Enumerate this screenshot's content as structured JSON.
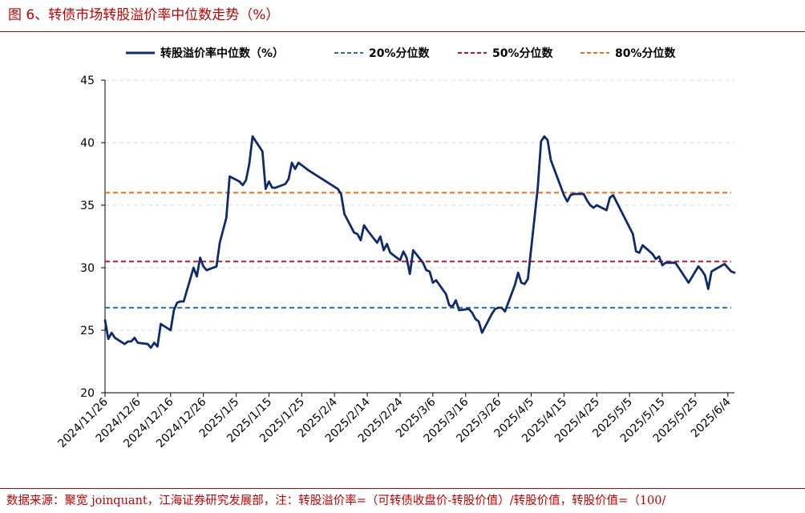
{
  "figure": {
    "title": "图 6、转债市场转股溢价率中位数走势（%）",
    "source": "数据来源：聚宽 joinquant，江海证券研究发展部，注：转股溢价率=（可转债收盘价-转股价值）/转股价值，转股价值=（100/"
  },
  "chart_data": {
    "type": "line",
    "ylim": [
      20,
      45
    ],
    "yticks": [
      20,
      25,
      30,
      35,
      40,
      45
    ],
    "xlim": [
      "2024-11-26",
      "2025-06-06"
    ],
    "xtick_labels": [
      "2024/11/26",
      "2024/12/6",
      "2024/12/16",
      "2024/12/26",
      "2025/1/5",
      "2025/1/15",
      "2025/1/25",
      "2025/2/4",
      "2025/2/14",
      "2025/2/24",
      "2025/3/6",
      "2025/3/16",
      "2025/3/26",
      "2025/4/5",
      "2025/4/15",
      "2025/4/25",
      "2025/5/5",
      "2025/5/15",
      "2025/5/25",
      "2025/6/4"
    ],
    "grid": "horizontal dashed",
    "legend_placement": "top",
    "series": [
      {
        "name": "转股溢价率中位数（%）",
        "style": "solid",
        "color": "#0f2b6b",
        "points": [
          [
            "2024-11-26",
            25.8
          ],
          [
            "2024-11-27",
            24.3
          ],
          [
            "2024-11-28",
            24.8
          ],
          [
            "2024-11-29",
            24.4
          ],
          [
            "2024-12-02",
            23.9
          ],
          [
            "2024-12-03",
            24.1
          ],
          [
            "2024-12-04",
            24.1
          ],
          [
            "2024-12-05",
            24.4
          ],
          [
            "2024-12-06",
            24.0
          ],
          [
            "2024-12-09",
            23.9
          ],
          [
            "2024-12-10",
            23.6
          ],
          [
            "2024-12-11",
            24.0
          ],
          [
            "2024-12-12",
            23.7
          ],
          [
            "2024-12-13",
            25.5
          ],
          [
            "2024-12-16",
            25.0
          ],
          [
            "2024-12-17",
            26.6
          ],
          [
            "2024-12-18",
            27.2
          ],
          [
            "2024-12-19",
            27.3
          ],
          [
            "2024-12-20",
            27.3
          ],
          [
            "2024-12-23",
            30.0
          ],
          [
            "2024-12-24",
            29.3
          ],
          [
            "2024-12-25",
            30.8
          ],
          [
            "2024-12-26",
            30.1
          ],
          [
            "2024-12-27",
            29.8
          ],
          [
            "2024-12-30",
            30.1
          ],
          [
            "2024-12-31",
            32.0
          ],
          [
            "2025-01-02",
            34.0
          ],
          [
            "2025-01-03",
            37.3
          ],
          [
            "2025-01-06",
            36.9
          ],
          [
            "2025-01-07",
            36.6
          ],
          [
            "2025-01-08",
            37.0
          ],
          [
            "2025-01-09",
            38.3
          ],
          [
            "2025-01-10",
            40.5
          ],
          [
            "2025-01-13",
            39.3
          ],
          [
            "2025-01-14",
            36.3
          ],
          [
            "2025-01-15",
            36.9
          ],
          [
            "2025-01-16",
            36.4
          ],
          [
            "2025-01-17",
            36.4
          ],
          [
            "2025-01-20",
            36.7
          ],
          [
            "2025-01-21",
            37.1
          ],
          [
            "2025-01-22",
            38.4
          ],
          [
            "2025-01-23",
            37.9
          ],
          [
            "2025-01-24",
            38.4
          ],
          [
            "2025-01-27",
            37.8
          ],
          [
            "2025-02-05",
            36.3
          ],
          [
            "2025-02-06",
            35.9
          ],
          [
            "2025-02-07",
            34.3
          ],
          [
            "2025-02-10",
            32.8
          ],
          [
            "2025-02-11",
            32.7
          ],
          [
            "2025-02-12",
            32.2
          ],
          [
            "2025-02-13",
            33.4
          ],
          [
            "2025-02-14",
            33.0
          ],
          [
            "2025-02-17",
            32.0
          ],
          [
            "2025-02-18",
            32.5
          ],
          [
            "2025-02-19",
            31.4
          ],
          [
            "2025-02-20",
            31.9
          ],
          [
            "2025-02-21",
            31.2
          ],
          [
            "2025-02-24",
            30.6
          ],
          [
            "2025-02-25",
            31.3
          ],
          [
            "2025-02-26",
            30.8
          ],
          [
            "2025-02-27",
            29.5
          ],
          [
            "2025-02-28",
            31.4
          ],
          [
            "2025-03-03",
            30.4
          ],
          [
            "2025-03-04",
            29.8
          ],
          [
            "2025-03-05",
            29.7
          ],
          [
            "2025-03-06",
            28.8
          ],
          [
            "2025-03-07",
            29.0
          ],
          [
            "2025-03-10",
            27.9
          ],
          [
            "2025-03-11",
            27.0
          ],
          [
            "2025-03-12",
            26.9
          ],
          [
            "2025-03-13",
            27.4
          ],
          [
            "2025-03-14",
            26.6
          ],
          [
            "2025-03-17",
            26.7
          ],
          [
            "2025-03-18",
            26.4
          ],
          [
            "2025-03-19",
            25.9
          ],
          [
            "2025-03-20",
            25.7
          ],
          [
            "2025-03-21",
            24.8
          ],
          [
            "2025-03-24",
            26.3
          ],
          [
            "2025-03-25",
            26.7
          ],
          [
            "2025-03-26",
            26.8
          ],
          [
            "2025-03-27",
            26.8
          ],
          [
            "2025-03-28",
            26.5
          ],
          [
            "2025-03-31",
            28.6
          ],
          [
            "2025-04-01",
            29.6
          ],
          [
            "2025-04-02",
            28.8
          ],
          [
            "2025-04-03",
            28.7
          ],
          [
            "2025-04-04",
            29.1
          ],
          [
            "2025-04-07",
            36.4
          ],
          [
            "2025-04-08",
            40.1
          ],
          [
            "2025-04-09",
            40.5
          ],
          [
            "2025-04-10",
            40.2
          ],
          [
            "2025-04-11",
            38.6
          ],
          [
            "2025-04-14",
            36.5
          ],
          [
            "2025-04-15",
            35.8
          ],
          [
            "2025-04-16",
            35.3
          ],
          [
            "2025-04-17",
            35.8
          ],
          [
            "2025-04-18",
            35.9
          ],
          [
            "2025-04-21",
            35.9
          ],
          [
            "2025-04-22",
            35.4
          ],
          [
            "2025-04-23",
            35.0
          ],
          [
            "2025-04-24",
            34.8
          ],
          [
            "2025-04-25",
            35.0
          ],
          [
            "2025-04-28",
            34.6
          ],
          [
            "2025-04-29",
            35.6
          ],
          [
            "2025-04-30",
            35.8
          ],
          [
            "2025-05-06",
            32.7
          ],
          [
            "2025-05-07",
            31.3
          ],
          [
            "2025-05-08",
            31.2
          ],
          [
            "2025-05-09",
            31.8
          ],
          [
            "2025-05-12",
            31.1
          ],
          [
            "2025-05-13",
            30.7
          ],
          [
            "2025-05-14",
            30.9
          ],
          [
            "2025-05-15",
            30.2
          ],
          [
            "2025-05-16",
            30.4
          ],
          [
            "2025-05-19",
            30.4
          ],
          [
            "2025-05-20",
            30.0
          ],
          [
            "2025-05-21",
            29.6
          ],
          [
            "2025-05-22",
            29.2
          ],
          [
            "2025-05-23",
            28.8
          ],
          [
            "2025-05-26",
            30.1
          ],
          [
            "2025-05-27",
            29.8
          ],
          [
            "2025-05-28",
            29.4
          ],
          [
            "2025-05-29",
            28.3
          ],
          [
            "2025-05-30",
            29.7
          ],
          [
            "2025-06-03",
            30.3
          ],
          [
            "2025-06-04",
            30.0
          ],
          [
            "2025-06-05",
            29.7
          ],
          [
            "2025-06-06",
            29.6
          ]
        ]
      },
      {
        "name": "20%分位数",
        "style": "dashed",
        "color": "#2e6e9e",
        "value": 26.8
      },
      {
        "name": "50%分位数",
        "style": "dashed",
        "color": "#d0102a",
        "value": 30.5
      },
      {
        "name": "80%分位数",
        "style": "dashed",
        "color": "#ef6c1a",
        "value": 36.0
      }
    ]
  }
}
